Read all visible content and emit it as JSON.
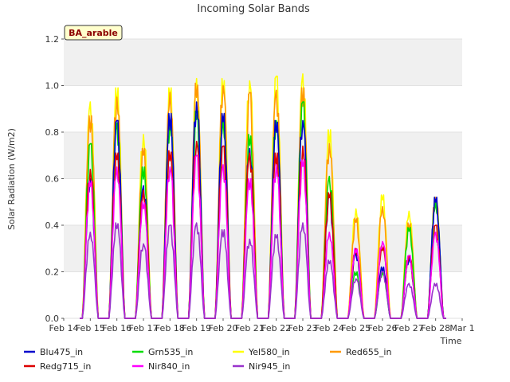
{
  "chart_data": {
    "type": "line",
    "title": "Incoming Solar Bands",
    "xlabel": "Time",
    "ylabel": "Solar Radiation (W/m2)",
    "site_label": "BA_arable",
    "ylim": [
      0,
      1.2
    ],
    "yticks": [
      "0.0",
      "0.2",
      "0.4",
      "0.6",
      "0.8",
      "1.0",
      "1.2"
    ],
    "xlim": [
      "Feb 14",
      "Mar 1"
    ],
    "xticks": [
      "Feb 14",
      "Feb 15",
      "Feb 16",
      "Feb 17",
      "Feb 18",
      "Feb 19",
      "Feb 20",
      "Feb 21",
      "Feb 22",
      "Feb 23",
      "Feb 24",
      "Feb 25",
      "Feb 26",
      "Feb 27",
      "Feb 28",
      "Mar 1"
    ],
    "grid": "horizontal bands",
    "legend_position": "bottom",
    "day_centers": [
      "Feb 15",
      "Feb 16",
      "Feb 17",
      "Feb 18",
      "Feb 19",
      "Feb 20",
      "Feb 21",
      "Feb 22",
      "Feb 23",
      "Feb 24",
      "Feb 25",
      "Feb 26",
      "Feb 27",
      "Feb 28"
    ],
    "series": [
      {
        "name": "Blu475_in",
        "color": "#0000cc",
        "daily_peaks": [
          0.6,
          0.85,
          0.57,
          0.88,
          0.93,
          0.88,
          0.73,
          0.85,
          0.85,
          0.52,
          0.28,
          0.22,
          0.26,
          0.52
        ]
      },
      {
        "name": "Grn535_in",
        "color": "#00dd00",
        "daily_peaks": [
          0.75,
          0.84,
          0.65,
          0.85,
          0.89,
          0.86,
          0.79,
          0.85,
          0.93,
          0.61,
          0.2,
          0.2,
          0.39,
          0.5
        ]
      },
      {
        "name": "Yel580_in",
        "color": "#ffff00",
        "daily_peaks": [
          0.93,
          0.99,
          0.79,
          0.99,
          1.03,
          1.03,
          1.02,
          1.04,
          1.05,
          0.81,
          0.47,
          0.53,
          0.46,
          0.52
        ]
      },
      {
        "name": "Red655_in",
        "color": "#ff9900",
        "daily_peaks": [
          0.87,
          0.95,
          0.73,
          0.97,
          1.01,
          1.0,
          0.97,
          0.98,
          0.99,
          0.75,
          0.43,
          0.48,
          0.41,
          0.52
        ]
      },
      {
        "name": "Redg715_in",
        "color": "#dd0000",
        "daily_peaks": [
          0.64,
          0.71,
          0.55,
          0.72,
          0.76,
          0.74,
          0.71,
          0.71,
          0.74,
          0.54,
          0.3,
          0.31,
          0.27,
          0.4
        ]
      },
      {
        "name": "Nir840_in",
        "color": "#ff00ff",
        "daily_peaks": [
          0.59,
          0.65,
          0.5,
          0.65,
          0.7,
          0.66,
          0.6,
          0.66,
          0.68,
          0.37,
          0.3,
          0.33,
          0.27,
          0.37
        ]
      },
      {
        "name": "Nir945_in",
        "color": "#9933cc",
        "daily_peaks": [
          0.37,
          0.41,
          0.32,
          0.4,
          0.41,
          0.38,
          0.34,
          0.36,
          0.41,
          0.25,
          0.17,
          0.2,
          0.15,
          0.15
        ]
      }
    ]
  }
}
